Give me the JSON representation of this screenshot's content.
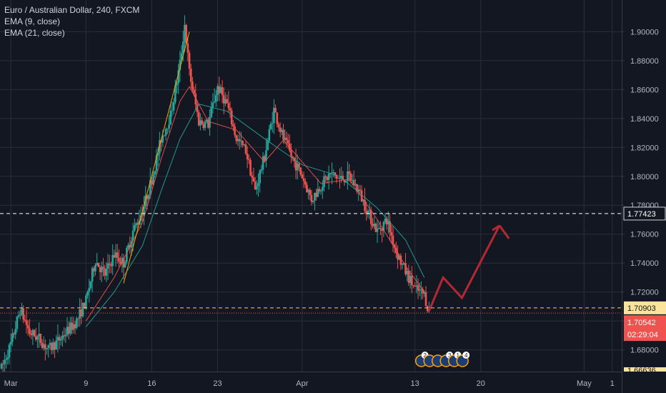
{
  "legend": {
    "symbol": "Euro / Australian Dollar, 240, FXCM",
    "ema9": "EMA (9, close)",
    "ema21": "EMA (21, close)"
  },
  "price_labels": {
    "resistance": "1.77423",
    "support": "1.70903",
    "current": "1.70542",
    "countdown": "02:29:04",
    "clipped_bottom": "1.66636"
  },
  "event_markers": [
    {
      "kind": "flag",
      "count": "2"
    },
    {
      "kind": "flag",
      "count": ""
    },
    {
      "kind": "flag",
      "count": ""
    },
    {
      "kind": "flag",
      "count": "3"
    },
    {
      "kind": "flag",
      "count": "1"
    },
    {
      "kind": "flag",
      "count": "4"
    }
  ],
  "colors": {
    "background": "#131722",
    "grid": "#2a2e39",
    "up": "#26a69a",
    "down": "#ef5350",
    "ema9": "#ef5350",
    "ema21": "#26a69a",
    "trendline": "#f7a700",
    "projection": "#b22833",
    "resistance_line": "#ffffff",
    "support_line": "#fbd54b",
    "current_line": "#ef5350",
    "axis_text": "#b2b5be",
    "support_label_bg": "#fbe39a",
    "current_label_bg": "#ef5350"
  },
  "chart_data": {
    "type": "candlestick",
    "symbol": "EUR/AUD",
    "timeframe": "240",
    "y_axis": {
      "range": [
        1.663,
        1.918
      ],
      "ticks": [
        "1.68000",
        "1.70000",
        "1.72000",
        "1.74000",
        "1.76000",
        "1.78000",
        "1.80000",
        "1.82000",
        "1.84000",
        "1.86000",
        "1.88000",
        "1.90000"
      ]
    },
    "x_axis": {
      "range_days": [
        "2020-02-29",
        "2020-05-05"
      ],
      "ticks": [
        {
          "label": "Mar",
          "date": "2020-03-01"
        },
        {
          "label": "9",
          "date": "2020-03-09"
        },
        {
          "label": "16",
          "date": "2020-03-16"
        },
        {
          "label": "23",
          "date": "2020-03-23"
        },
        {
          "label": "Apr",
          "date": "2020-04-01"
        },
        {
          "label": "13",
          "date": "2020-04-13"
        },
        {
          "label": "20",
          "date": "2020-04-20"
        },
        {
          "label": "May",
          "date": "2020-05-01"
        },
        {
          "label": "1",
          "date": "2020-05-04"
        }
      ]
    },
    "grid": true,
    "anchors": [
      {
        "date": "2020-02-29",
        "price": 1.667
      },
      {
        "date": "2020-03-01",
        "price": 1.684
      },
      {
        "date": "2020-03-02",
        "price": 1.708
      },
      {
        "date": "2020-03-03",
        "price": 1.692
      },
      {
        "date": "2020-03-04",
        "price": 1.688
      },
      {
        "date": "2020-03-05",
        "price": 1.68
      },
      {
        "date": "2020-03-06",
        "price": 1.686
      },
      {
        "date": "2020-03-08",
        "price": 1.7
      },
      {
        "date": "2020-03-09",
        "price": 1.714
      },
      {
        "date": "2020-03-10",
        "price": 1.742
      },
      {
        "date": "2020-03-11",
        "price": 1.732
      },
      {
        "date": "2020-03-12",
        "price": 1.746
      },
      {
        "date": "2020-03-13",
        "price": 1.74
      },
      {
        "date": "2020-03-14",
        "price": 1.762
      },
      {
        "date": "2020-03-15",
        "price": 1.776
      },
      {
        "date": "2020-03-16",
        "price": 1.798
      },
      {
        "date": "2020-03-17",
        "price": 1.826
      },
      {
        "date": "2020-03-18",
        "price": 1.842
      },
      {
        "date": "2020-03-19",
        "price": 1.878
      },
      {
        "date": "2020-03-19T12",
        "price": 1.905
      },
      {
        "date": "2020-03-20",
        "price": 1.872
      },
      {
        "date": "2020-03-21",
        "price": 1.838
      },
      {
        "date": "2020-03-22",
        "price": 1.836
      },
      {
        "date": "2020-03-23",
        "price": 1.862
      },
      {
        "date": "2020-03-24",
        "price": 1.85
      },
      {
        "date": "2020-03-25",
        "price": 1.826
      },
      {
        "date": "2020-03-26",
        "price": 1.818
      },
      {
        "date": "2020-03-27",
        "price": 1.79
      },
      {
        "date": "2020-03-28",
        "price": 1.814
      },
      {
        "date": "2020-03-29",
        "price": 1.846
      },
      {
        "date": "2020-03-30",
        "price": 1.826
      },
      {
        "date": "2020-03-31",
        "price": 1.812
      },
      {
        "date": "2020-04-01",
        "price": 1.8
      },
      {
        "date": "2020-04-02",
        "price": 1.784
      },
      {
        "date": "2020-04-03",
        "price": 1.794
      },
      {
        "date": "2020-04-04",
        "price": 1.802
      },
      {
        "date": "2020-04-05",
        "price": 1.798
      },
      {
        "date": "2020-04-06",
        "price": 1.8
      },
      {
        "date": "2020-04-07",
        "price": 1.79
      },
      {
        "date": "2020-04-08",
        "price": 1.775
      },
      {
        "date": "2020-04-09",
        "price": 1.762
      },
      {
        "date": "2020-04-10",
        "price": 1.77
      },
      {
        "date": "2020-04-11",
        "price": 1.748
      },
      {
        "date": "2020-04-12",
        "price": 1.734
      },
      {
        "date": "2020-04-13",
        "price": 1.722
      },
      {
        "date": "2020-04-14",
        "price": 1.718
      },
      {
        "date": "2020-04-14T12",
        "price": 1.706
      }
    ],
    "ema_9": [
      {
        "date": "2020-03-09",
        "price": 1.7
      },
      {
        "date": "2020-03-12",
        "price": 1.73
      },
      {
        "date": "2020-03-15",
        "price": 1.768
      },
      {
        "date": "2020-03-17",
        "price": 1.812
      },
      {
        "date": "2020-03-19",
        "price": 1.852
      },
      {
        "date": "2020-03-20",
        "price": 1.862
      },
      {
        "date": "2020-03-22",
        "price": 1.838
      },
      {
        "date": "2020-03-25",
        "price": 1.832
      },
      {
        "date": "2020-03-28",
        "price": 1.81
      },
      {
        "date": "2020-03-30",
        "price": 1.825
      },
      {
        "date": "2020-04-03",
        "price": 1.795
      },
      {
        "date": "2020-04-06",
        "price": 1.798
      },
      {
        "date": "2020-04-09",
        "price": 1.77
      },
      {
        "date": "2020-04-12",
        "price": 1.738
      },
      {
        "date": "2020-04-14",
        "price": 1.72
      }
    ],
    "ema_21": [
      {
        "date": "2020-03-09",
        "price": 1.696
      },
      {
        "date": "2020-03-12",
        "price": 1.72
      },
      {
        "date": "2020-03-15",
        "price": 1.752
      },
      {
        "date": "2020-03-17",
        "price": 1.79
      },
      {
        "date": "2020-03-19",
        "price": 1.826
      },
      {
        "date": "2020-03-21",
        "price": 1.85
      },
      {
        "date": "2020-03-24",
        "price": 1.845
      },
      {
        "date": "2020-03-28",
        "price": 1.826
      },
      {
        "date": "2020-04-01",
        "price": 1.808
      },
      {
        "date": "2020-04-05",
        "price": 1.8
      },
      {
        "date": "2020-04-09",
        "price": 1.778
      },
      {
        "date": "2020-04-12",
        "price": 1.756
      },
      {
        "date": "2020-04-14",
        "price": 1.73
      }
    ],
    "trendline": [
      {
        "date": "2020-03-13",
        "price": 1.726
      },
      {
        "date": "2020-03-20",
        "price": 1.9
      }
    ],
    "projection_path": [
      {
        "date": "2020-04-14T12",
        "price": 1.707
      },
      {
        "date": "2020-04-16",
        "price": 1.73
      },
      {
        "date": "2020-04-18",
        "price": 1.716
      },
      {
        "date": "2020-04-22",
        "price": 1.766
      },
      {
        "date": "2020-04-23",
        "price": 1.757
      }
    ],
    "horizontal_lines": [
      {
        "name": "resistance",
        "price": 1.77423,
        "style": "dashed"
      },
      {
        "name": "support",
        "price": 1.70903,
        "style": "dashed"
      },
      {
        "name": "current",
        "price": 1.70542,
        "style": "dotted"
      }
    ],
    "last_price": 1.70542
  }
}
